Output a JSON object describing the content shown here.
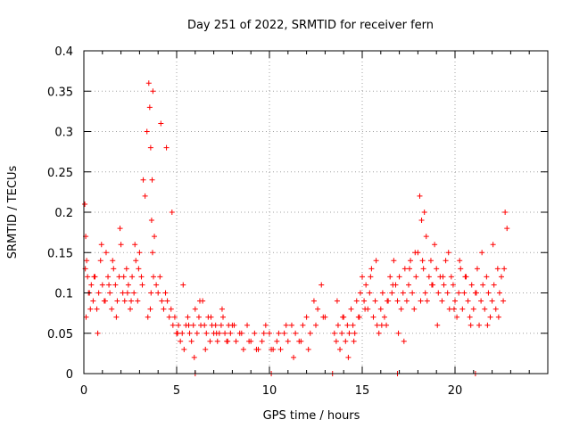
{
  "colors": {
    "series": "#ff0000",
    "grid": "#a0a0a0",
    "axis": "#000000",
    "background": "#ffffff"
  },
  "chart_data": {
    "type": "scatter",
    "title": "Day 251 of 2022, SRMTID for receiver fern",
    "xlabel": "GPS time / hours",
    "ylabel": "SRMTID / TECUs",
    "xlim": [
      0,
      25
    ],
    "ylim": [
      0,
      0.4
    ],
    "xticks": [
      0,
      5,
      10,
      15,
      20
    ],
    "xtick_labels": [
      "0",
      "5",
      "10",
      "15",
      "20"
    ],
    "yticks": [
      0,
      0.05,
      0.1,
      0.15,
      0.2,
      0.25,
      0.3,
      0.35,
      0.4
    ],
    "ytick_labels": [
      "0",
      "0.05",
      "0.1",
      "0.15",
      "0.2",
      "0.25",
      "0.3",
      "0.35",
      "0.4"
    ],
    "grid": true,
    "marker": "+",
    "series": [
      {
        "name": "SRMTID",
        "x": [
          0.05,
          0.1,
          0.15,
          0.2,
          0.3,
          0.4,
          0.5,
          0.6,
          0.7,
          0.8,
          0.9,
          1.0,
          1.1,
          1.2,
          1.3,
          1.4,
          1.5,
          1.6,
          1.7,
          1.8,
          1.9,
          2.0,
          2.1,
          2.2,
          2.3,
          2.4,
          2.5,
          2.6,
          2.7,
          2.8,
          2.9,
          3.0,
          3.1,
          3.2,
          3.3,
          3.4,
          3.5,
          3.55,
          3.6,
          3.65,
          3.7,
          3.75,
          3.8,
          3.9,
          4.0,
          4.1,
          4.2,
          4.3,
          4.4,
          4.5,
          4.6,
          4.7,
          4.8,
          4.9,
          5.0,
          5.1,
          5.2,
          5.3,
          5.4,
          5.5,
          5.6,
          5.7,
          5.8,
          5.9,
          6.0,
          6.1,
          6.2,
          6.3,
          6.4,
          6.5,
          6.6,
          6.7,
          6.8,
          6.9,
          7.0,
          7.1,
          7.2,
          7.3,
          7.4,
          7.5,
          7.6,
          7.7,
          7.8,
          7.9,
          8.0,
          8.2,
          8.4,
          8.6,
          8.8,
          9.0,
          9.2,
          9.4,
          9.6,
          9.8,
          10.0,
          10.2,
          10.4,
          10.6,
          10.8,
          11.0,
          11.2,
          11.4,
          11.6,
          11.8,
          12.0,
          12.2,
          12.4,
          12.6,
          12.8,
          13.0,
          13.5,
          13.6,
          13.7,
          13.8,
          13.9,
          14.0,
          14.1,
          14.2,
          14.3,
          14.4,
          14.5,
          14.6,
          14.7,
          14.8,
          14.9,
          15.0,
          15.1,
          15.2,
          15.3,
          15.4,
          15.5,
          15.6,
          15.7,
          15.8,
          15.9,
          16.0,
          16.1,
          16.2,
          16.3,
          16.4,
          16.5,
          16.6,
          16.7,
          16.8,
          16.9,
          17.0,
          17.1,
          17.2,
          17.3,
          17.4,
          17.5,
          17.6,
          17.7,
          17.8,
          17.9,
          18.0,
          18.1,
          18.2,
          18.3,
          18.4,
          18.5,
          18.6,
          18.7,
          18.8,
          18.9,
          19.0,
          19.1,
          19.2,
          19.3,
          19.4,
          19.5,
          19.6,
          19.7,
          19.8,
          19.9,
          20.0,
          20.1,
          20.2,
          20.3,
          20.4,
          20.5,
          20.6,
          20.7,
          20.8,
          20.9,
          21.0,
          21.1,
          21.2,
          21.3,
          21.4,
          21.5,
          21.6,
          21.7,
          21.8,
          21.9,
          22.0,
          22.1,
          22.2,
          22.3,
          22.4,
          22.5,
          22.6,
          22.7,
          22.8,
          0.08,
          0.12,
          0.25,
          0.35,
          0.55,
          0.75,
          0.95,
          1.15,
          1.35,
          1.55,
          1.75,
          1.95,
          2.15,
          2.35,
          2.55,
          2.75,
          2.95,
          3.15,
          3.45,
          3.58,
          3.62,
          3.68,
          3.72,
          4.15,
          4.45,
          4.75,
          5.05,
          5.35,
          5.65,
          5.95,
          6.25,
          6.55,
          6.85,
          7.15,
          7.45,
          7.75,
          8.1,
          8.5,
          8.9,
          9.3,
          9.7,
          10.1,
          10.5,
          10.9,
          11.3,
          11.7,
          12.1,
          12.5,
          12.9,
          13.65,
          13.95,
          14.25,
          14.55,
          14.85,
          15.15,
          15.45,
          15.75,
          16.05,
          16.35,
          16.65,
          16.95,
          17.25,
          17.55,
          17.85,
          18.15,
          18.25,
          18.35,
          18.45,
          18.75,
          19.05,
          19.35,
          19.65,
          19.95,
          20.25,
          20.55,
          20.85,
          21.15,
          21.45,
          21.75,
          22.05,
          22.35,
          22.65,
          6.0,
          10.1,
          13.4,
          16.9,
          21.1
        ],
        "y": [
          0.21,
          0.17,
          0.14,
          0.12,
          0.1,
          0.11,
          0.09,
          0.12,
          0.08,
          0.1,
          0.14,
          0.11,
          0.09,
          0.15,
          0.12,
          0.1,
          0.08,
          0.13,
          0.11,
          0.09,
          0.12,
          0.16,
          0.1,
          0.09,
          0.13,
          0.11,
          0.08,
          0.12,
          0.1,
          0.14,
          0.09,
          0.15,
          0.12,
          0.24,
          0.22,
          0.3,
          0.36,
          0.33,
          0.28,
          0.19,
          0.15,
          0.12,
          0.17,
          0.11,
          0.1,
          0.12,
          0.09,
          0.08,
          0.1,
          0.09,
          0.07,
          0.08,
          0.06,
          0.07,
          0.05,
          0.06,
          0.04,
          0.05,
          0.03,
          0.06,
          0.07,
          0.05,
          0.04,
          0.06,
          0.08,
          0.05,
          0.07,
          0.06,
          0.09,
          0.06,
          0.05,
          0.07,
          0.04,
          0.06,
          0.05,
          0.06,
          0.04,
          0.05,
          0.06,
          0.07,
          0.05,
          0.04,
          0.06,
          0.05,
          0.06,
          0.04,
          0.05,
          0.03,
          0.06,
          0.04,
          0.05,
          0.03,
          0.04,
          0.06,
          0.05,
          0.03,
          0.04,
          0.03,
          0.05,
          0.04,
          0.06,
          0.05,
          0.04,
          0.06,
          0.07,
          0.05,
          0.09,
          0.08,
          0.11,
          0.07,
          0.05,
          0.04,
          0.06,
          0.03,
          0.05,
          0.07,
          0.04,
          0.06,
          0.05,
          0.08,
          0.06,
          0.05,
          0.09,
          0.07,
          0.1,
          0.12,
          0.09,
          0.11,
          0.08,
          0.1,
          0.13,
          0.07,
          0.09,
          0.06,
          0.05,
          0.08,
          0.1,
          0.07,
          0.06,
          0.09,
          0.12,
          0.1,
          0.14,
          0.11,
          0.09,
          0.12,
          0.08,
          0.1,
          0.13,
          0.09,
          0.11,
          0.14,
          0.1,
          0.08,
          0.12,
          0.15,
          0.22,
          0.19,
          0.13,
          0.1,
          0.09,
          0.12,
          0.14,
          0.11,
          0.16,
          0.13,
          0.1,
          0.12,
          0.09,
          0.11,
          0.14,
          0.1,
          0.08,
          0.12,
          0.11,
          0.09,
          0.07,
          0.1,
          0.13,
          0.08,
          0.1,
          0.12,
          0.09,
          0.07,
          0.11,
          0.08,
          0.1,
          0.13,
          0.06,
          0.09,
          0.11,
          0.08,
          0.12,
          0.1,
          0.07,
          0.09,
          0.11,
          0.08,
          0.13,
          0.1,
          0.12,
          0.09,
          0.2,
          0.18,
          0.13,
          0.07,
          0.1,
          0.08,
          0.12,
          0.05,
          0.16,
          0.09,
          0.11,
          0.14,
          0.07,
          0.18,
          0.12,
          0.1,
          0.09,
          0.16,
          0.13,
          0.11,
          0.07,
          0.08,
          0.1,
          0.24,
          0.35,
          0.31,
          0.28,
          0.2,
          0.05,
          0.11,
          0.06,
          0.02,
          0.09,
          0.03,
          0.07,
          0.05,
          0.08,
          0.04,
          0.06,
          0.05,
          0.04,
          0.03,
          0.05,
          0.03,
          0.05,
          0.06,
          0.02,
          0.04,
          0.03,
          0.06,
          0.07,
          0.09,
          0.07,
          0.02,
          0.04,
          0.07,
          0.08,
          0.12,
          0.14,
          0.06,
          0.09,
          0.11,
          0.05,
          0.04,
          0.13,
          0.15,
          0.09,
          0.14,
          0.2,
          0.17,
          0.11,
          0.06,
          0.12,
          0.15,
          0.08,
          0.14,
          0.12,
          0.06,
          0.1,
          0.15,
          0.06,
          0.16,
          0.07,
          0.13,
          0.0,
          0.0,
          0.0,
          0.0,
          0.0
        ]
      }
    ]
  }
}
